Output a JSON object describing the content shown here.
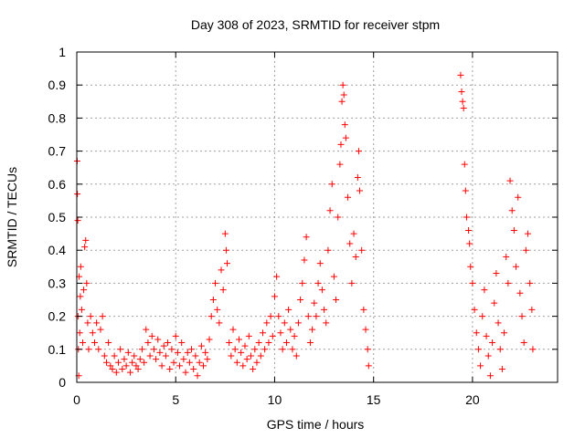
{
  "chart_data": {
    "type": "scatter",
    "title": "Day 308 of 2023, SRMTID for receiver stpm",
    "xlabel": "GPS time / hours",
    "ylabel": "SRMTID / TECUs",
    "xlim": [
      0,
      24.3
    ],
    "ylim": [
      0,
      1
    ],
    "xticks": [
      0,
      5,
      10,
      15,
      20
    ],
    "xtick_labels": [
      "0",
      "5",
      "10",
      "15",
      "20"
    ],
    "yticks": [
      0,
      0.1,
      0.2,
      0.3,
      0.4,
      0.5,
      0.6,
      0.7,
      0.8,
      0.9,
      1
    ],
    "ytick_labels": [
      "0",
      "0.1",
      "0.2",
      "0.3",
      "0.4",
      "0.5",
      "0.6",
      "0.7",
      "0.8",
      "0.9",
      "1"
    ],
    "grid": true,
    "marker": "+",
    "color": "#ff0000",
    "series": [
      {
        "name": "stpm",
        "points": [
          [
            0.02,
            0.67
          ],
          [
            0.03,
            0.57
          ],
          [
            0.05,
            0.49
          ],
          [
            0.06,
            0.2
          ],
          [
            0.08,
            0.1
          ],
          [
            0.1,
            0.02
          ],
          [
            0.12,
            0.32
          ],
          [
            0.15,
            0.15
          ],
          [
            0.18,
            0.26
          ],
          [
            0.2,
            0.35
          ],
          [
            0.25,
            0.22
          ],
          [
            0.3,
            0.12
          ],
          [
            0.35,
            0.28
          ],
          [
            0.4,
            0.41
          ],
          [
            0.45,
            0.43
          ],
          [
            0.5,
            0.3
          ],
          [
            0.55,
            0.18
          ],
          [
            0.6,
            0.1
          ],
          [
            0.7,
            0.2
          ],
          [
            0.8,
            0.15
          ],
          [
            0.9,
            0.12
          ],
          [
            1.0,
            0.18
          ],
          [
            1.1,
            0.1
          ],
          [
            1.2,
            0.16
          ],
          [
            1.3,
            0.2
          ],
          [
            1.4,
            0.08
          ],
          [
            1.5,
            0.06
          ],
          [
            1.6,
            0.12
          ],
          [
            1.7,
            0.05
          ],
          [
            1.8,
            0.04
          ],
          [
            1.9,
            0.08
          ],
          [
            2.0,
            0.03
          ],
          [
            2.1,
            0.06
          ],
          [
            2.2,
            0.1
          ],
          [
            2.3,
            0.04
          ],
          [
            2.4,
            0.07
          ],
          [
            2.5,
            0.05
          ],
          [
            2.6,
            0.09
          ],
          [
            2.7,
            0.03
          ],
          [
            2.8,
            0.06
          ],
          [
            2.9,
            0.08
          ],
          [
            3.0,
            0.05
          ],
          [
            3.1,
            0.04
          ],
          [
            3.2,
            0.07
          ],
          [
            3.3,
            0.1
          ],
          [
            3.4,
            0.06
          ],
          [
            3.5,
            0.16
          ],
          [
            3.6,
            0.12
          ],
          [
            3.7,
            0.08
          ],
          [
            3.8,
            0.14
          ],
          [
            3.9,
            0.1
          ],
          [
            4.0,
            0.07
          ],
          [
            4.1,
            0.13
          ],
          [
            4.2,
            0.09
          ],
          [
            4.3,
            0.05
          ],
          [
            4.4,
            0.11
          ],
          [
            4.5,
            0.08
          ],
          [
            4.6,
            0.12
          ],
          [
            4.7,
            0.04
          ],
          [
            4.8,
            0.1
          ],
          [
            4.9,
            0.06
          ],
          [
            5.0,
            0.14
          ],
          [
            5.1,
            0.09
          ],
          [
            5.2,
            0.05
          ],
          [
            5.3,
            0.12
          ],
          [
            5.4,
            0.07
          ],
          [
            5.5,
            0.03
          ],
          [
            5.6,
            0.09
          ],
          [
            5.7,
            0.06
          ],
          [
            5.8,
            0.1
          ],
          [
            5.9,
            0.04
          ],
          [
            6.0,
            0.08
          ],
          [
            6.1,
            0.02
          ],
          [
            6.2,
            0.06
          ],
          [
            6.3,
            0.11
          ],
          [
            6.4,
            0.05
          ],
          [
            6.5,
            0.09
          ],
          [
            6.6,
            0.07
          ],
          [
            6.7,
            0.13
          ],
          [
            6.8,
            0.2
          ],
          [
            6.9,
            0.25
          ],
          [
            7.0,
            0.3
          ],
          [
            7.1,
            0.22
          ],
          [
            7.2,
            0.18
          ],
          [
            7.3,
            0.34
          ],
          [
            7.4,
            0.28
          ],
          [
            7.5,
            0.45
          ],
          [
            7.55,
            0.4
          ],
          [
            7.6,
            0.36
          ],
          [
            7.7,
            0.12
          ],
          [
            7.8,
            0.08
          ],
          [
            7.9,
            0.16
          ],
          [
            8.0,
            0.1
          ],
          [
            8.1,
            0.06
          ],
          [
            8.2,
            0.13
          ],
          [
            8.3,
            0.09
          ],
          [
            8.4,
            0.05
          ],
          [
            8.5,
            0.11
          ],
          [
            8.6,
            0.07
          ],
          [
            8.7,
            0.14
          ],
          [
            8.8,
            0.08
          ],
          [
            8.9,
            0.04
          ],
          [
            9.0,
            0.1
          ],
          [
            9.1,
            0.06
          ],
          [
            9.2,
            0.12
          ],
          [
            9.3,
            0.08
          ],
          [
            9.4,
            0.15
          ],
          [
            9.5,
            0.1
          ],
          [
            9.6,
            0.18
          ],
          [
            9.7,
            0.12
          ],
          [
            9.8,
            0.2
          ],
          [
            9.9,
            0.14
          ],
          [
            10.0,
            0.26
          ],
          [
            10.1,
            0.32
          ],
          [
            10.2,
            0.2
          ],
          [
            10.3,
            0.15
          ],
          [
            10.4,
            0.1
          ],
          [
            10.5,
            0.18
          ],
          [
            10.6,
            0.12
          ],
          [
            10.7,
            0.22
          ],
          [
            10.8,
            0.16
          ],
          [
            10.9,
            0.1
          ],
          [
            11.0,
            0.14
          ],
          [
            11.1,
            0.08
          ],
          [
            11.2,
            0.18
          ],
          [
            11.3,
            0.25
          ],
          [
            11.4,
            0.3
          ],
          [
            11.5,
            0.37
          ],
          [
            11.6,
            0.44
          ],
          [
            11.7,
            0.2
          ],
          [
            11.8,
            0.12
          ],
          [
            11.9,
            0.16
          ],
          [
            12.0,
            0.24
          ],
          [
            12.1,
            0.2
          ],
          [
            12.2,
            0.3
          ],
          [
            12.3,
            0.36
          ],
          [
            12.4,
            0.28
          ],
          [
            12.5,
            0.22
          ],
          [
            12.6,
            0.18
          ],
          [
            12.7,
            0.4
          ],
          [
            12.8,
            0.52
          ],
          [
            12.9,
            0.6
          ],
          [
            13.0,
            0.32
          ],
          [
            13.1,
            0.25
          ],
          [
            13.2,
            0.5
          ],
          [
            13.3,
            0.66
          ],
          [
            13.35,
            0.72
          ],
          [
            13.4,
            0.85
          ],
          [
            13.45,
            0.9
          ],
          [
            13.5,
            0.87
          ],
          [
            13.55,
            0.78
          ],
          [
            13.6,
            0.74
          ],
          [
            13.7,
            0.56
          ],
          [
            13.8,
            0.42
          ],
          [
            13.9,
            0.3
          ],
          [
            14.0,
            0.45
          ],
          [
            14.1,
            0.38
          ],
          [
            14.2,
            0.62
          ],
          [
            14.25,
            0.7
          ],
          [
            14.3,
            0.58
          ],
          [
            14.4,
            0.4
          ],
          [
            14.5,
            0.22
          ],
          [
            14.6,
            0.16
          ],
          [
            14.7,
            0.1
          ],
          [
            14.75,
            0.05
          ],
          [
            19.4,
            0.93
          ],
          [
            19.45,
            0.88
          ],
          [
            19.5,
            0.85
          ],
          [
            19.55,
            0.83
          ],
          [
            19.6,
            0.66
          ],
          [
            19.65,
            0.58
          ],
          [
            19.7,
            0.5
          ],
          [
            19.8,
            0.46
          ],
          [
            19.85,
            0.42
          ],
          [
            19.9,
            0.35
          ],
          [
            20.0,
            0.3
          ],
          [
            20.1,
            0.22
          ],
          [
            20.2,
            0.15
          ],
          [
            20.3,
            0.1
          ],
          [
            20.4,
            0.05
          ],
          [
            20.5,
            0.2
          ],
          [
            20.6,
            0.28
          ],
          [
            20.7,
            0.14
          ],
          [
            20.8,
            0.08
          ],
          [
            20.9,
            0.02
          ],
          [
            21.0,
            0.12
          ],
          [
            21.1,
            0.24
          ],
          [
            21.2,
            0.33
          ],
          [
            21.3,
            0.18
          ],
          [
            21.4,
            0.1
          ],
          [
            21.5,
            0.04
          ],
          [
            21.6,
            0.15
          ],
          [
            21.7,
            0.38
          ],
          [
            21.8,
            0.3
          ],
          [
            21.9,
            0.61
          ],
          [
            22.0,
            0.52
          ],
          [
            22.1,
            0.46
          ],
          [
            22.2,
            0.35
          ],
          [
            22.3,
            0.56
          ],
          [
            22.4,
            0.27
          ],
          [
            22.5,
            0.2
          ],
          [
            22.6,
            0.12
          ],
          [
            22.7,
            0.4
          ],
          [
            22.8,
            0.45
          ],
          [
            22.9,
            0.3
          ],
          [
            23.0,
            0.22
          ],
          [
            23.05,
            0.1
          ]
        ]
      }
    ]
  }
}
